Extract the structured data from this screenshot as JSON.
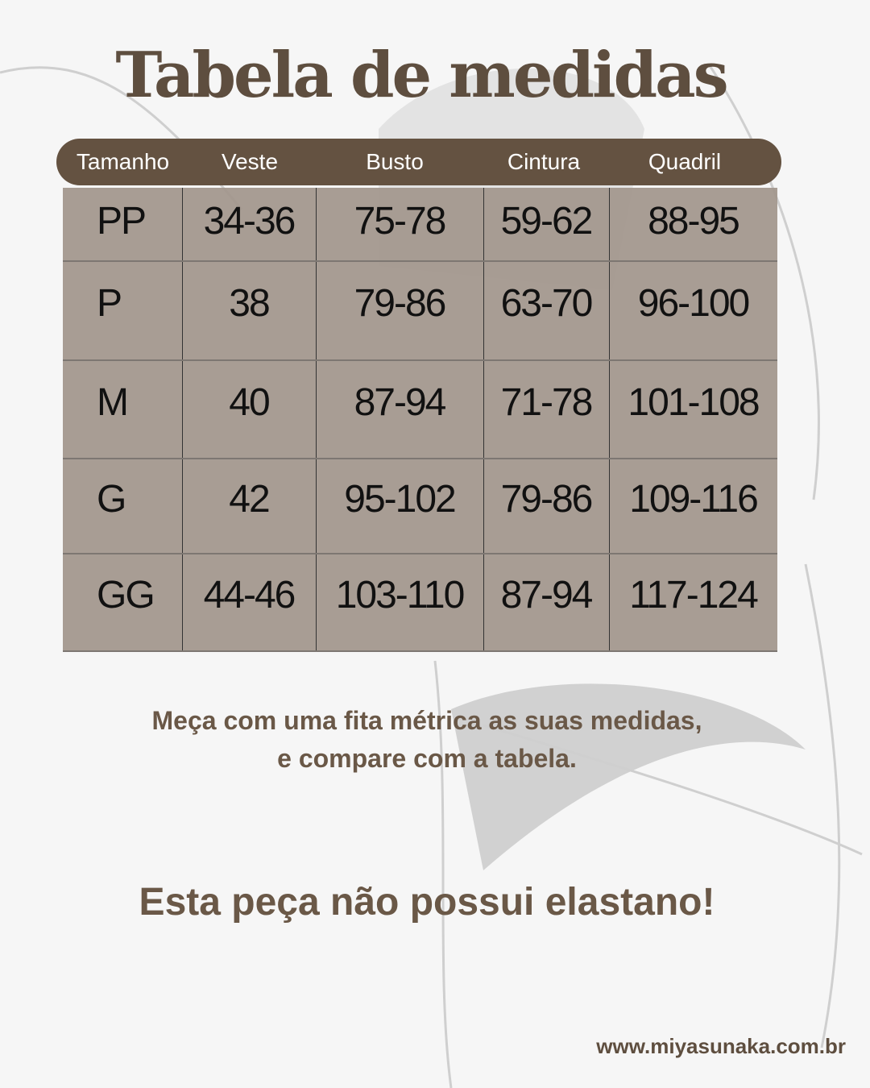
{
  "title": "Tabela de medidas",
  "table": {
    "headers": [
      "Tamanho",
      "Veste",
      "Busto",
      "Cintura",
      "Quadril"
    ],
    "rows": [
      [
        "PP",
        "34-36",
        "75-78",
        "59-62",
        "88-95"
      ],
      [
        "P",
        "38",
        "79-86",
        "63-70",
        "96-100"
      ],
      [
        "M",
        "40",
        "87-94",
        "71-78",
        "101-108"
      ],
      [
        "G",
        "42",
        "95-102",
        "79-86",
        "109-116"
      ],
      [
        "GG",
        "44-46",
        "103-110",
        "87-94",
        "117-124"
      ]
    ]
  },
  "instructions": {
    "line1": "Meça com uma fita métrica as suas medidas,",
    "line2": "e compare com a tabela."
  },
  "notice": "Esta peça não possui elastano!",
  "website": "www.miyasunaka.com.br",
  "colors": {
    "brand": "#645241",
    "table_bg": "#a09489",
    "background": "#f6f6f6"
  }
}
